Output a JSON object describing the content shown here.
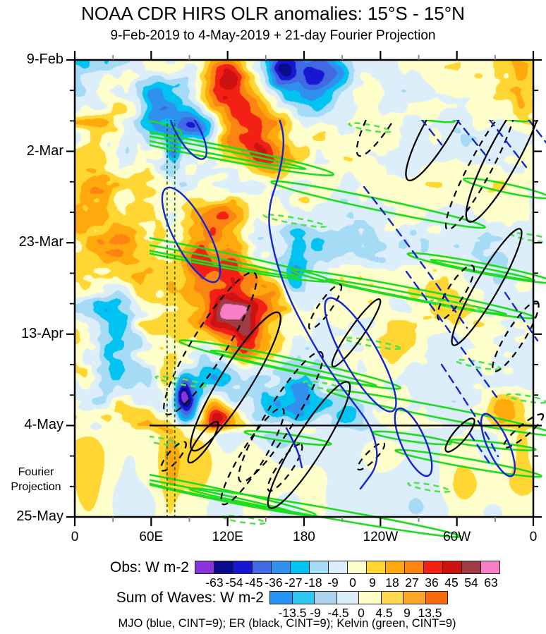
{
  "chart_data": {
    "type": "heatmap",
    "title": "NOAA CDR HIRS OLR anomalies: 15°S - 15°N",
    "subtitle": "9-Feb-2019 to 4-May-2019 + 21-day Fourier Projection",
    "caption": "MJO (blue, CINT=9); ER (black, CINT=9); Kelvin (green, CINT=9)",
    "fourier_label": [
      "Fourier",
      "Projection"
    ],
    "x_axis": {
      "range_deg": [
        0,
        360
      ],
      "minor_step_deg": 30,
      "major_ticks": [
        {
          "deg": 0,
          "label": "0"
        },
        {
          "deg": 60,
          "label": "60E"
        },
        {
          "deg": 120,
          "label": "120E"
        },
        {
          "deg": 180,
          "label": "180"
        },
        {
          "deg": 240,
          "label": "120W"
        },
        {
          "deg": 300,
          "label": "60W"
        },
        {
          "deg": 360,
          "label": "0"
        }
      ]
    },
    "y_axis": {
      "start_date": "9-Feb-2019",
      "end_date": "25-May-2019",
      "range_days": 105,
      "minor_step_days": 7,
      "major_ticks": [
        {
          "day": 0,
          "label": "9-Feb"
        },
        {
          "day": 21,
          "label": "2-Mar"
        },
        {
          "day": 42,
          "label": "23-Mar"
        },
        {
          "day": 63,
          "label": "13-Apr"
        },
        {
          "day": 84,
          "label": "4-May"
        },
        {
          "day": 105,
          "label": "25-May"
        }
      ]
    },
    "projection_start_day": 84,
    "reference_lons_deg": [
      72.5,
      78.5
    ],
    "colorbars": {
      "obs": {
        "label": "Obs: W m-2",
        "tick_labels": [
          "-63",
          "-54",
          "-45",
          "-36",
          "-27",
          "-18",
          "-9",
          "0",
          "9",
          "18",
          "27",
          "36",
          "45",
          "54",
          "63"
        ],
        "colors": [
          "#8a33dd",
          "#0b0b90",
          "#1717d2",
          "#4169e1",
          "#2f90ee",
          "#00c3f2",
          "#a6dbf5",
          "#ddeefb",
          "#ffffcc",
          "#ffd632",
          "#ffa90c",
          "#fb8413",
          "#f22015",
          "#cd1212",
          "#9e3c46",
          "#f77fc8"
        ]
      },
      "waves": {
        "label": "Sum of Waves: W m-2",
        "tick_labels": [
          "-13.5",
          "-9",
          "-4.5",
          "0",
          "4.5",
          "9",
          "13.5"
        ],
        "colors": [
          "#2693f5",
          "#2cc8f2",
          "#aed3ee",
          "#dceefa",
          "#ffffc8",
          "#ffd84e",
          "#fca62a",
          "#f96b0d"
        ]
      }
    },
    "contour_styles": {
      "kelvin": {
        "name": "Kelvin",
        "color": "#1edc1e",
        "dash_color": "#52e352",
        "width": 2.6,
        "dash": "8 6",
        "cint": 9
      },
      "mjo": {
        "name": "MJO",
        "color": "#1326cf",
        "width": 2.4,
        "dash": "11 8",
        "cint": 9
      },
      "er": {
        "name": "ER",
        "color": "#000000",
        "width": 2.2,
        "dash": "9 7",
        "cint": 9
      },
      "reference_line": {
        "color": "#1c6b1c",
        "dash": "4 3.5",
        "width": 1.7
      }
    },
    "field": {
      "units": "W m-2",
      "levels_min": -63,
      "levels_max": 63,
      "level_step": 9,
      "obs_noise_octaves": [
        [
          140,
          90,
          15,
          11
        ],
        [
          66,
          44,
          12,
          22
        ],
        [
          32,
          22,
          9,
          33
        ],
        [
          15,
          11,
          6,
          44
        ]
      ],
      "west_damp": {
        "start_deg": 170,
        "end_deg": 205,
        "factor": 0.6
      },
      "obs_features": [
        [
          132,
          11,
          22,
          7,
          50
        ],
        [
          118,
          3,
          10,
          4,
          30
        ],
        [
          152,
          22,
          14,
          5,
          36
        ],
        [
          163,
          2,
          9,
          4,
          -44
        ],
        [
          186,
          5,
          12,
          5,
          -36
        ],
        [
          207,
          3,
          9,
          3,
          -22
        ],
        [
          95,
          15,
          13,
          2.5,
          -42
        ],
        [
          77,
          21,
          5,
          2.5,
          -40
        ],
        [
          60,
          12,
          8,
          5,
          -18
        ],
        [
          15,
          33,
          13,
          9,
          20
        ],
        [
          42,
          38,
          16,
          8,
          18
        ],
        [
          118,
          40,
          14,
          6,
          30
        ],
        [
          97,
          45,
          9,
          4,
          30
        ],
        [
          140,
          52,
          18,
          9,
          24
        ],
        [
          172,
          50,
          7,
          3,
          -28
        ],
        [
          28,
          66,
          12,
          8,
          -24
        ],
        [
          118,
          60,
          11,
          5,
          38
        ],
        [
          133,
          64,
          7,
          4,
          28
        ],
        [
          88,
          78,
          6,
          4,
          -44
        ],
        [
          83,
          75,
          5,
          3,
          -30
        ],
        [
          112,
          82,
          7,
          3,
          38
        ],
        [
          75,
          74,
          7,
          4,
          30
        ],
        [
          150,
          80,
          11,
          4,
          -24
        ],
        [
          176,
          80,
          12,
          4,
          -26
        ],
        [
          213,
          81,
          9,
          3,
          -16
        ],
        [
          338,
          81,
          13,
          4,
          22
        ],
        [
          352,
          6,
          11,
          6,
          18
        ],
        [
          120,
          74,
          10,
          3,
          -20
        ]
      ],
      "proj_noise_octaves": [
        [
          180,
          70,
          8,
          55
        ],
        [
          85,
          40,
          4,
          66
        ]
      ],
      "proj_features": [
        [
          75,
          94,
          6,
          13,
          16
        ],
        [
          120,
          88,
          9,
          4,
          -12
        ],
        [
          158,
          87,
          13,
          4,
          -16
        ],
        [
          10,
          96,
          12,
          10,
          12
        ],
        [
          305,
          97,
          10,
          6,
          13
        ],
        [
          268,
          100,
          12,
          8,
          -7
        ],
        [
          215,
          92,
          10,
          6,
          -9
        ],
        [
          350,
          91,
          10,
          8,
          12
        ],
        [
          140,
          101,
          13,
          8,
          8
        ],
        [
          40,
          101,
          10,
          6,
          -7
        ],
        [
          95,
          100,
          8,
          8,
          10
        ]
      ]
    },
    "contours": {
      "kelvin": {
        "solid_ellipses": [
          [
            20,
            58,
            26,
            7,
            14
          ],
          [
            62,
            78,
            32,
            8,
            13
          ],
          [
            118,
            97,
            34,
            8,
            13
          ],
          [
            190,
            128,
            180,
            10,
            11
          ],
          [
            190,
            128,
            140,
            4,
            11
          ],
          [
            150,
            272,
            215,
            11,
            11
          ],
          [
            155,
            276,
            165,
            4,
            11
          ],
          [
            430,
            205,
            155,
            8,
            12
          ],
          [
            480,
            332,
            175,
            8,
            11
          ],
          [
            484,
            336,
            130,
            3.5,
            11
          ],
          [
            305,
            432,
            160,
            9,
            12
          ],
          [
            310,
            437,
            120,
            4,
            12
          ],
          [
            520,
            500,
            165,
            8,
            11
          ],
          [
            185,
            612,
            160,
            8,
            12
          ],
          [
            190,
            616,
            120,
            3.5,
            12
          ],
          [
            355,
            642,
            195,
            7,
            10
          ],
          [
            558,
            572,
            105,
            6,
            10
          ],
          [
            612,
            182,
            62,
            6,
            12
          ],
          [
            607,
            78,
            38,
            5,
            12
          ],
          [
            478,
            76,
            62,
            6,
            10
          ],
          [
            302,
            536,
            62,
            5,
            8
          ],
          [
            478,
            536,
            56,
            5,
            8
          ],
          [
            592,
            546,
            62,
            4,
            6
          ],
          [
            575,
            295,
            105,
            7,
            11
          ],
          [
            578,
            298,
            75,
            3,
            11
          ]
        ],
        "dashed_ellipses": [
          [
            312,
            228,
            45,
            4,
            10
          ],
          [
            422,
            402,
            40,
            4,
            10
          ],
          [
            540,
            348,
            36,
            4,
            10
          ],
          [
            150,
            456,
            36,
            4,
            10
          ],
          [
            352,
            462,
            28,
            4,
            10
          ],
          [
            502,
            606,
            30,
            4,
            10
          ],
          [
            418,
            96,
            30,
            4,
            10
          ],
          [
            648,
            252,
            30,
            4,
            10
          ],
          [
            572,
            432,
            32,
            4,
            10
          ],
          [
            240,
            652,
            30,
            4,
            8
          ],
          [
            120,
            540,
            28,
            4,
            10
          ],
          [
            640,
            480,
            28,
            4,
            10
          ]
        ]
      },
      "mjo": {
        "solid_ellipses": [
          [
            165,
            248,
            75,
            24,
            62
          ],
          [
            160,
            100,
            46,
            16,
            60
          ],
          [
            405,
            418,
            92,
            24,
            60
          ],
          [
            480,
            542,
            52,
            17,
            66
          ],
          [
            600,
            546,
            48,
            15,
            66
          ]
        ],
        "solid_paths": [
          [
            [
              248,
              -6
            ],
            [
              268,
              45
            ],
            [
              298,
              95
            ],
            [
              293,
              155
            ],
            [
              272,
              215
            ],
            [
              282,
              275
            ],
            [
              302,
              335
            ],
            [
              332,
              392
            ],
            [
              362,
              442
            ],
            [
              392,
              482
            ],
            [
              422,
              522
            ],
            [
              432,
              572
            ],
            [
              405,
              608
            ]
          ],
          [
            [
              300,
              522
            ],
            [
              316,
              552
            ],
            [
              322,
              578
            ]
          ]
        ],
        "dashed_paths": [
          [
            [
              420,
              -6
            ],
            [
              520,
              120
            ]
          ],
          [
            [
              468,
              -6
            ],
            [
              588,
              142
            ]
          ],
          [
            [
              518,
              -6
            ],
            [
              640,
              152
            ]
          ],
          [
            [
              574,
              -6
            ],
            [
              678,
              130
            ]
          ],
          [
            [
              410,
              180
            ],
            [
              478,
              268
            ],
            [
              556,
              380
            ]
          ],
          [
            [
              470,
              300
            ],
            [
              548,
              408
            ],
            [
              598,
              478
            ]
          ],
          [
            [
              520,
              432
            ],
            [
              578,
              520
            ],
            [
              600,
              562
            ]
          ],
          [
            [
              610,
              330
            ],
            [
              656,
              398
            ]
          ],
          [
            [
              560,
              530
            ],
            [
              588,
              572
            ]
          ]
        ]
      },
      "er": {
        "solid_ellipses": [
          [
            520,
            88,
            95,
            20,
            -60
          ],
          [
            610,
            132,
            110,
            22,
            -62
          ],
          [
            30,
            302,
            55,
            13,
            -62
          ],
          [
            228,
            456,
            115,
            22,
            -58
          ],
          [
            332,
            546,
            105,
            20,
            -58
          ],
          [
            399,
            387,
            58,
            10,
            -55
          ],
          [
            584,
            322,
            95,
            16,
            -60
          ],
          [
            546,
            532,
            30,
            9,
            -50
          ],
          [
            182,
            542,
            35,
            9,
            -55
          ]
        ],
        "dashed_ellipses": [
          [
            445,
            62,
            85,
            18,
            -60
          ],
          [
            575,
            152,
            100,
            16,
            -62
          ],
          [
            615,
            42,
            50,
            13,
            -58
          ],
          [
            45,
            152,
            50,
            10,
            -58
          ],
          [
            192,
            402,
            118,
            24,
            -58
          ],
          [
            292,
            506,
            108,
            20,
            -58
          ],
          [
            355,
            350,
            38,
            9,
            -55
          ],
          [
            540,
            330,
            45,
            12,
            -58
          ],
          [
            625,
            392,
            58,
            13,
            -58
          ],
          [
            252,
            562,
            80,
            16,
            -58
          ],
          [
            298,
            578,
            40,
            10,
            -55
          ],
          [
            636,
            526,
            36,
            8,
            -40
          ],
          [
            420,
            562,
            26,
            7,
            -45
          ],
          [
            140,
            562,
            26,
            8,
            -50
          ]
        ]
      }
    }
  }
}
